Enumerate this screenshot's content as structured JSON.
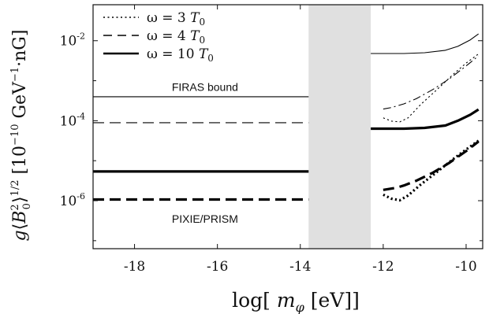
{
  "chart_data": {
    "type": "line",
    "xlabel": "log[ m_φ [eV]]",
    "ylabel": "g⟨B₀²⟩^1/2 [10⁻¹⁰ GeV⁻¹·nG]",
    "xlim": [
      -19,
      -9.6
    ],
    "ylim_log10": [
      -7.2,
      -1.1
    ],
    "y_scale": "log",
    "x_ticks": [
      -18,
      -16,
      -14,
      -12,
      -10
    ],
    "x_tick_labels": [
      "-18",
      "-16",
      "-14",
      "-12",
      "-10"
    ],
    "y_ticks": [
      {
        "base": "10",
        "exp": "-2",
        "log10": -2
      },
      {
        "base": "10",
        "exp": "-4",
        "log10": -4
      },
      {
        "base": "10",
        "exp": "-6",
        "log10": -6
      }
    ],
    "shaded_region": {
      "x": [
        -13.8,
        -12.3
      ],
      "color": "#e0e0e0"
    },
    "annotations": {
      "firas": {
        "text": "FIRAS bound",
        "x": -16.3,
        "y_log10": -3.25
      },
      "pixie": {
        "text": "PIXIE/PRISM",
        "x": -16.3,
        "y_log10": -6.55
      }
    },
    "legend": {
      "placement": "top-left",
      "entries": [
        {
          "style": "dotted",
          "label": "ω = 3 T₀",
          "label_parts": [
            "ω = 3",
            "T",
            "0"
          ]
        },
        {
          "style": "dashed",
          "label": "ω = 4 T₀",
          "label_parts": [
            "ω = 4",
            "T",
            "0"
          ]
        },
        {
          "style": "solid",
          "label": "ω = 10 T₀",
          "label_parts": [
            "ω = 10",
            "T",
            "0"
          ]
        }
      ]
    },
    "series": [
      {
        "style": "solid",
        "weight": "thin",
        "x": [
          -19,
          -13.8
        ],
        "y_log10": [
          -3.4,
          -3.4
        ]
      },
      {
        "style": "dashed",
        "weight": "thin",
        "x": [
          -19,
          -13.8
        ],
        "y_log10": [
          -4.05,
          -4.05
        ]
      },
      {
        "style": "solid",
        "weight": "thick",
        "x": [
          -19,
          -13.8
        ],
        "y_log10": [
          -5.27,
          -5.27
        ]
      },
      {
        "style": "dashed",
        "weight": "thick",
        "x": [
          -19,
          -13.8
        ],
        "y_log10": [
          -5.97,
          -5.97
        ]
      },
      {
        "style": "solid",
        "weight": "thin",
        "x": [
          -12.3,
          -11.5,
          -11,
          -10.5,
          -10.2,
          -9.9,
          -9.7
        ],
        "y_log10": [
          -2.32,
          -2.32,
          -2.3,
          -2.24,
          -2.14,
          -1.98,
          -1.83
        ]
      },
      {
        "style": "dashdot",
        "weight": "thin",
        "x": [
          -12,
          -11.8,
          -11.5,
          -11.2,
          -10.8,
          -10.4,
          -10.0,
          -9.7
        ],
        "y_log10": [
          -3.71,
          -3.67,
          -3.58,
          -3.45,
          -3.22,
          -2.95,
          -2.63,
          -2.38
        ]
      },
      {
        "style": "dotted",
        "weight": "thin",
        "x": [
          -12,
          -11.8,
          -11.6,
          -11.4,
          -11.1,
          -10.7,
          -10.3,
          -10.0,
          -9.7
        ],
        "y_log10": [
          -3.93,
          -4.01,
          -4.03,
          -3.93,
          -3.6,
          -3.22,
          -2.83,
          -2.56,
          -2.33
        ]
      },
      {
        "style": "solid",
        "weight": "thick",
        "x": [
          -12.3,
          -11.5,
          -11,
          -10.5,
          -10.2,
          -9.9,
          -9.7
        ],
        "y_log10": [
          -4.2,
          -4.2,
          -4.18,
          -4.12,
          -4.0,
          -3.85,
          -3.72
        ]
      },
      {
        "style": "dashed",
        "weight": "thick",
        "x": [
          -12,
          -11.7,
          -11.5,
          -11.2,
          -10.8,
          -10.4,
          -10.0,
          -9.7
        ],
        "y_log10": [
          -5.73,
          -5.68,
          -5.62,
          -5.5,
          -5.3,
          -5.05,
          -4.76,
          -4.52
        ]
      },
      {
        "style": "dotted",
        "weight": "thick",
        "x": [
          -12,
          -11.8,
          -11.6,
          -11.4,
          -11.1,
          -10.7,
          -10.3,
          -10.0,
          -9.7
        ],
        "y_log10": [
          -5.85,
          -5.95,
          -5.99,
          -5.87,
          -5.6,
          -5.28,
          -4.95,
          -4.72,
          -4.5
        ]
      }
    ]
  }
}
